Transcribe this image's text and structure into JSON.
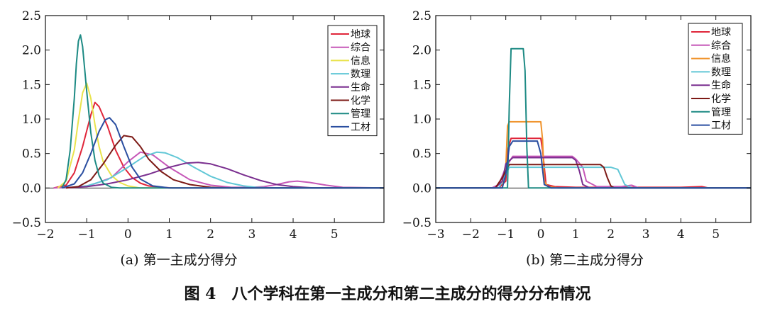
{
  "figure_caption": "图 4　八个学科在第一主成分和第二主成分的得分分布情况",
  "chart_data": [
    {
      "type": "line",
      "title": "(a) 第一主成分得分",
      "xlabel": "",
      "ylabel": "",
      "xlim": [
        -2,
        6.2
      ],
      "ylim": [
        -0.5,
        2.5
      ],
      "x_ticks": [
        "−2",
        "−1",
        "0",
        "1",
        "2",
        "3",
        "4",
        "5"
      ],
      "y_ticks": [
        "−0.5",
        "0.0",
        "0.5",
        "1.0",
        "1.5",
        "2.0",
        "2.5"
      ],
      "legend_position": "top-right",
      "series": [
        {
          "name": "地球",
          "color": "#e0263a",
          "x": [
            -1.8,
            -1.5,
            -1.3,
            -1.1,
            -0.9,
            -0.8,
            -0.7,
            -0.5,
            -0.3,
            -0.1,
            0.1,
            0.3,
            0.5,
            0.8,
            1.1,
            1.5,
            6.2
          ],
          "y": [
            0.0,
            0.04,
            0.22,
            0.6,
            1.06,
            1.24,
            1.18,
            0.9,
            0.55,
            0.3,
            0.15,
            0.07,
            0.03,
            0.01,
            0.0,
            0.0,
            0.0
          ]
        },
        {
          "name": "综合",
          "color": "#c658b8",
          "x": [
            -1.8,
            -1.0,
            -0.4,
            0.0,
            0.3,
            0.6,
            1.0,
            1.5,
            2.0,
            2.5,
            3.0,
            3.3,
            3.6,
            3.9,
            4.1,
            4.4,
            4.8,
            5.2,
            6.2
          ],
          "y": [
            0.0,
            0.02,
            0.15,
            0.38,
            0.52,
            0.48,
            0.3,
            0.12,
            0.04,
            0.01,
            0.01,
            0.02,
            0.05,
            0.09,
            0.1,
            0.08,
            0.04,
            0.01,
            0.0
          ]
        },
        {
          "name": "信息",
          "color": "#e9e34c",
          "x": [
            -1.7,
            -1.5,
            -1.3,
            -1.2,
            -1.1,
            -1.0,
            -0.9,
            -0.8,
            -0.7,
            -0.6,
            -0.4,
            -0.2,
            0.0,
            0.3,
            6.2
          ],
          "y": [
            0.0,
            0.1,
            0.55,
            0.98,
            1.38,
            1.52,
            1.3,
            0.92,
            0.6,
            0.38,
            0.18,
            0.08,
            0.03,
            0.0,
            0.0
          ]
        },
        {
          "name": "数理",
          "color": "#61c7d6",
          "x": [
            -1.5,
            -1.0,
            -0.5,
            0.0,
            0.4,
            0.7,
            0.9,
            1.2,
            1.6,
            2.0,
            2.4,
            2.8,
            3.1,
            3.5,
            6.2
          ],
          "y": [
            0.0,
            0.03,
            0.12,
            0.3,
            0.46,
            0.52,
            0.51,
            0.44,
            0.3,
            0.17,
            0.08,
            0.03,
            0.01,
            0.0,
            0.0
          ]
        },
        {
          "name": "生命",
          "color": "#7a2f8f",
          "x": [
            -1.5,
            -1.0,
            -0.5,
            0.0,
            0.5,
            1.0,
            1.4,
            1.7,
            2.0,
            2.4,
            2.8,
            3.2,
            3.6,
            4.0,
            4.5,
            6.2
          ],
          "y": [
            0.0,
            0.02,
            0.06,
            0.12,
            0.2,
            0.3,
            0.36,
            0.37,
            0.35,
            0.28,
            0.19,
            0.11,
            0.05,
            0.02,
            0.0,
            0.0
          ]
        },
        {
          "name": "化学",
          "color": "#7d1a16",
          "x": [
            -1.5,
            -1.2,
            -0.9,
            -0.6,
            -0.3,
            -0.1,
            0.1,
            0.3,
            0.5,
            0.8,
            1.1,
            1.5,
            2.0,
            2.5,
            6.2
          ],
          "y": [
            0.0,
            0.02,
            0.12,
            0.35,
            0.62,
            0.76,
            0.74,
            0.6,
            0.42,
            0.24,
            0.12,
            0.05,
            0.01,
            0.0,
            0.0
          ]
        },
        {
          "name": "管理",
          "color": "#1d8a84",
          "x": [
            -1.6,
            -1.5,
            -1.4,
            -1.3,
            -1.25,
            -1.2,
            -1.15,
            -1.1,
            -1.0,
            -0.9,
            -0.8,
            -0.7,
            -0.6,
            -0.4,
            -0.2,
            6.2
          ],
          "y": [
            0.0,
            0.12,
            0.55,
            1.3,
            1.8,
            2.13,
            2.22,
            2.05,
            1.4,
            0.8,
            0.4,
            0.18,
            0.07,
            0.01,
            0.0,
            0.0
          ]
        },
        {
          "name": "工材",
          "color": "#2a4ea0",
          "x": [
            -1.6,
            -1.3,
            -1.1,
            -0.9,
            -0.7,
            -0.55,
            -0.45,
            -0.3,
            -0.1,
            0.1,
            0.3,
            0.6,
            1.0,
            6.2
          ],
          "y": [
            0.0,
            0.06,
            0.22,
            0.5,
            0.82,
            0.99,
            1.02,
            0.92,
            0.6,
            0.3,
            0.13,
            0.03,
            0.0,
            0.0
          ]
        }
      ]
    },
    {
      "type": "line",
      "title": "(b) 第二主成分得分",
      "xlabel": "",
      "ylabel": "",
      "xlim": [
        -3,
        6
      ],
      "ylim": [
        -0.5,
        2.5
      ],
      "x_ticks": [
        "−3",
        "−2",
        "−1",
        "0",
        "1",
        "2",
        "3",
        "4",
        "5"
      ],
      "y_ticks": [
        "−0.5",
        "0.0",
        "0.5",
        "1.0",
        "1.5",
        "2.0",
        "2.5"
      ],
      "legend_position": "top-right",
      "series": [
        {
          "name": "地球",
          "color": "#e0263a",
          "x": [
            -3.0,
            -1.2,
            -1.0,
            -0.95,
            -0.85,
            0.0,
            0.05,
            0.15,
            0.4,
            1.0,
            2.0,
            4.0,
            4.6,
            4.8,
            6.0
          ],
          "y": [
            0.0,
            0.0,
            0.1,
            0.55,
            0.72,
            0.72,
            0.55,
            0.05,
            0.02,
            0.01,
            0.01,
            0.01,
            0.02,
            0.0,
            0.0
          ]
        },
        {
          "name": "综合",
          "color": "#c658b8",
          "x": [
            -3.0,
            -1.4,
            -1.2,
            -1.0,
            -0.8,
            0.0,
            0.9,
            1.0,
            1.2,
            1.3,
            1.6,
            2.3,
            2.6,
            2.8,
            6.0
          ],
          "y": [
            0.0,
            0.0,
            0.05,
            0.3,
            0.46,
            0.46,
            0.46,
            0.42,
            0.3,
            0.1,
            0.02,
            0.02,
            0.04,
            0.0,
            0.0
          ]
        },
        {
          "name": "信息",
          "color": "#f0932c",
          "x": [
            -3.0,
            -1.1,
            -1.0,
            -0.95,
            -0.9,
            0.0,
            0.05,
            0.1,
            0.2,
            0.5,
            6.0
          ],
          "y": [
            0.0,
            0.0,
            0.3,
            0.9,
            0.96,
            0.96,
            0.7,
            0.1,
            0.02,
            0.0,
            0.0
          ]
        },
        {
          "name": "数理",
          "color": "#61c7d6",
          "x": [
            -3.0,
            -1.2,
            -1.0,
            -0.9,
            0.0,
            1.0,
            2.0,
            2.2,
            2.4,
            2.6,
            6.0
          ],
          "y": [
            0.0,
            0.0,
            0.2,
            0.3,
            0.3,
            0.3,
            0.3,
            0.27,
            0.05,
            0.0,
            0.0
          ]
        },
        {
          "name": "生命",
          "color": "#7a2f8f",
          "x": [
            -3.0,
            -1.3,
            -1.1,
            -1.0,
            -0.8,
            0.0,
            0.9,
            1.0,
            1.1,
            1.2,
            1.4,
            6.0
          ],
          "y": [
            0.0,
            0.0,
            0.1,
            0.35,
            0.44,
            0.44,
            0.44,
            0.4,
            0.25,
            0.05,
            0.0,
            0.0
          ]
        },
        {
          "name": "化学",
          "color": "#7d1a16",
          "x": [
            -3.0,
            -1.3,
            -1.1,
            -0.9,
            0.0,
            1.0,
            1.7,
            1.8,
            1.9,
            2.0,
            2.1,
            2.4,
            6.0
          ],
          "y": [
            0.0,
            0.0,
            0.15,
            0.34,
            0.34,
            0.34,
            0.34,
            0.3,
            0.15,
            0.03,
            0.0,
            0.0,
            0.0
          ]
        },
        {
          "name": "管理",
          "color": "#1d8a84",
          "x": [
            -3.0,
            -0.95,
            -0.9,
            -0.85,
            -0.5,
            -0.45,
            -0.4,
            -0.35,
            6.0
          ],
          "y": [
            0.0,
            0.0,
            1.2,
            2.02,
            2.02,
            1.7,
            0.6,
            0.0,
            0.0
          ]
        },
        {
          "name": "工材",
          "color": "#2a4ea0",
          "x": [
            -3.0,
            -1.1,
            -1.0,
            -0.9,
            -0.8,
            -0.1,
            0.0,
            0.1,
            0.3,
            6.0
          ],
          "y": [
            0.0,
            0.0,
            0.2,
            0.6,
            0.68,
            0.68,
            0.5,
            0.05,
            0.0,
            0.0
          ]
        }
      ]
    }
  ]
}
